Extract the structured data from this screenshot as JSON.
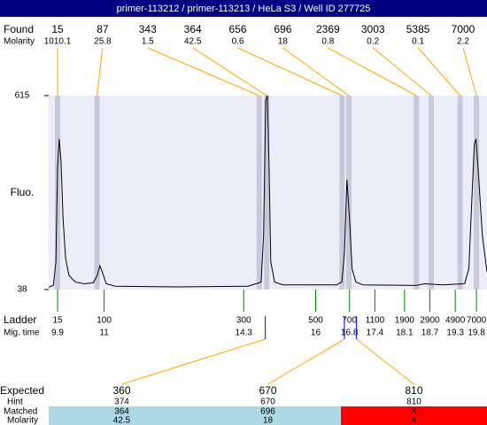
{
  "header": {
    "title": "primer-113212 / primer-113213 / HeLa S3 / Well ID 277725"
  },
  "chart_data": {
    "type": "electropherogram",
    "y_label": "Fluo.",
    "ylim": [
      38,
      615
    ],
    "yticks": [
      38,
      615
    ],
    "xlim": [
      9.69,
      20.05
    ],
    "found": {
      "label": "Found",
      "molarity_label": "Molarity",
      "color": "#ffa500",
      "band_color": "#c8c8d8",
      "sizes": [
        15,
        87,
        343,
        364,
        656,
        696,
        2369,
        3003,
        5385,
        7000
      ],
      "molarity": [
        1010.1,
        25.8,
        1.5,
        42.5,
        0.6,
        18,
        0.8,
        0.2,
        0.1,
        2.2
      ]
    },
    "ladder": {
      "label": "Ladder",
      "time_label": "Mig. time",
      "color": "#008000",
      "sizes": [
        15,
        100,
        300,
        500,
        700,
        1100,
        1900,
        2900,
        4900,
        7000
      ],
      "times": [
        9.9,
        11,
        14.3,
        16,
        16.8,
        17.4,
        18.1,
        18.7,
        19.3,
        19.8
      ]
    },
    "trace": {
      "color": "#000000",
      "x": [
        9.69,
        9.8,
        9.86,
        9.9,
        9.94,
        9.98,
        10.03,
        10.09,
        10.17,
        10.32,
        10.53,
        10.74,
        10.84,
        10.9,
        10.97,
        11.05,
        11.26,
        12.72,
        14.4,
        14.71,
        14.77,
        14.82,
        14.86,
        14.9,
        14.94,
        15.03,
        15.23,
        16.49,
        16.62,
        16.68,
        16.74,
        16.8,
        16.86,
        16.95,
        17.12,
        18.37,
        18.58,
        19.0,
        19.52,
        19.62,
        19.69,
        19.75,
        19.79,
        19.85,
        19.94,
        20.05
      ],
      "y": [
        45,
        50,
        120,
        400,
        486,
        420,
        250,
        130,
        80,
        60,
        55,
        58,
        80,
        109,
        85,
        55,
        48,
        46,
        48,
        60,
        200,
        600,
        615,
        400,
        120,
        60,
        52,
        52,
        60,
        150,
        365,
        250,
        100,
        60,
        52,
        50,
        55,
        52,
        55,
        100,
        300,
        470,
        486,
        380,
        200,
        90
      ]
    },
    "expected": {
      "label": "Expected",
      "hint_label": "Hint",
      "matched_label": "Matched",
      "molarity_label": "Molarity",
      "marker_color": "#0000ff",
      "matched_color": "#add8e6",
      "unmatched_color": "#ff0000",
      "sizes": [
        360,
        670,
        810
      ],
      "hint": [
        374,
        670,
        810
      ],
      "matched": [
        364,
        696,
        "X"
      ],
      "molarity": [
        42.5,
        18,
        "X"
      ]
    }
  }
}
